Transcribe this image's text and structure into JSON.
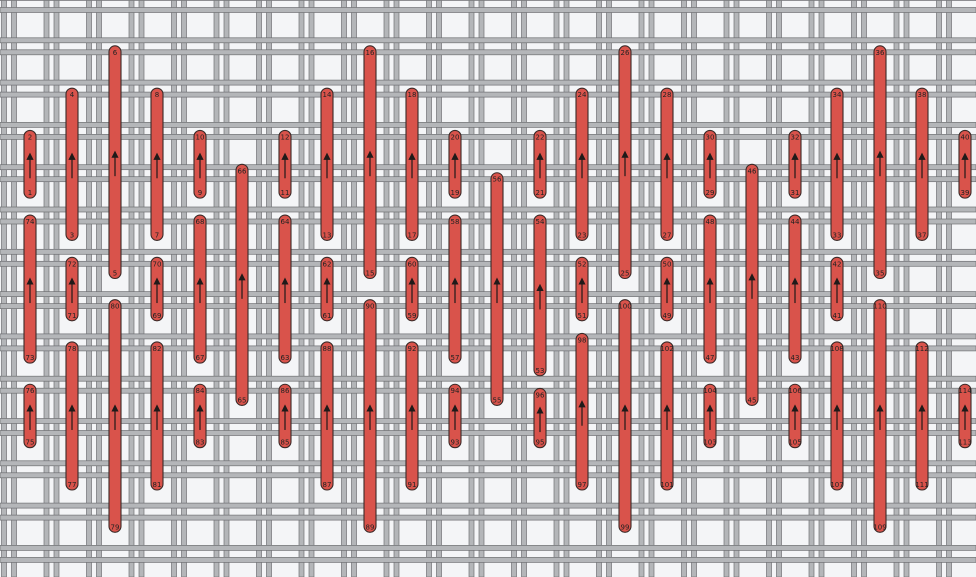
{
  "title": "",
  "colors": {
    "canvas_background": "#f4f5f7",
    "grid_thread": "#b4b6b9",
    "grid_thread_edge": "#6f7174",
    "stitch_fill": "#d9534b",
    "stitch_outline": "#3a2a28",
    "arrow": "#1f1a19"
  },
  "stitches": [
    {
      "id": "c1-a",
      "top": "2",
      "bottom": "1"
    },
    {
      "id": "c1-b",
      "top": "74",
      "bottom": "73"
    },
    {
      "id": "c1-c",
      "top": "76",
      "bottom": "75"
    },
    {
      "id": "c2-a",
      "top": "4",
      "bottom": "3"
    },
    {
      "id": "c2-b",
      "top": "72",
      "bottom": "71"
    },
    {
      "id": "c2-c",
      "top": "78",
      "bottom": "77"
    },
    {
      "id": "c3-a",
      "top": "6",
      "bottom": "5"
    },
    {
      "id": "c3-b",
      "top": "80",
      "bottom": "79"
    },
    {
      "id": "c4-a",
      "top": "8",
      "bottom": "7"
    },
    {
      "id": "c4-b",
      "top": "70",
      "bottom": "69"
    },
    {
      "id": "c4-c",
      "top": "82",
      "bottom": "81"
    },
    {
      "id": "c5-a",
      "top": "10",
      "bottom": "9"
    },
    {
      "id": "c5-b",
      "top": "68",
      "bottom": "67"
    },
    {
      "id": "c5-c",
      "top": "84",
      "bottom": "83"
    },
    {
      "id": "c6-a",
      "top": "66",
      "bottom": "65"
    },
    {
      "id": "c7-a",
      "top": "12",
      "bottom": "11"
    },
    {
      "id": "c7-b",
      "top": "64",
      "bottom": "63"
    },
    {
      "id": "c7-c",
      "top": "86",
      "bottom": "85"
    },
    {
      "id": "c8-a",
      "top": "14",
      "bottom": "13"
    },
    {
      "id": "c8-b",
      "top": "62",
      "bottom": "61"
    },
    {
      "id": "c8-c",
      "top": "88",
      "bottom": "87"
    },
    {
      "id": "c9-a",
      "top": "16",
      "bottom": "15"
    },
    {
      "id": "c9-b",
      "top": "90",
      "bottom": "89"
    },
    {
      "id": "c10-a",
      "top": "18",
      "bottom": "17"
    },
    {
      "id": "c10-b",
      "top": "60",
      "bottom": "59"
    },
    {
      "id": "c10-c",
      "top": "92",
      "bottom": "91"
    },
    {
      "id": "c11-a",
      "top": "20",
      "bottom": "19"
    },
    {
      "id": "c11-b",
      "top": "58",
      "bottom": "57"
    },
    {
      "id": "c11-c",
      "top": "94",
      "bottom": "93"
    },
    {
      "id": "c12-a",
      "top": "56",
      "bottom": "55"
    },
    {
      "id": "c13-a",
      "top": "22",
      "bottom": "21"
    },
    {
      "id": "c13-b",
      "top": "54",
      "bottom": "53"
    },
    {
      "id": "c13-c",
      "top": "96",
      "bottom": "95"
    },
    {
      "id": "c14-a",
      "top": "24",
      "bottom": "23"
    },
    {
      "id": "c14-b",
      "top": "52",
      "bottom": "51"
    },
    {
      "id": "c14-c",
      "top": "98",
      "bottom": "97"
    },
    {
      "id": "c15-a",
      "top": "26",
      "bottom": "25"
    },
    {
      "id": "c15-b",
      "top": "100",
      "bottom": "99"
    },
    {
      "id": "c16-a",
      "top": "28",
      "bottom": "27"
    },
    {
      "id": "c16-b",
      "top": "50",
      "bottom": "49"
    },
    {
      "id": "c16-c",
      "top": "102",
      "bottom": "101"
    },
    {
      "id": "c17-a",
      "top": "30",
      "bottom": "29"
    },
    {
      "id": "c17-b",
      "top": "48",
      "bottom": "47"
    },
    {
      "id": "c17-c",
      "top": "104",
      "bottom": "103"
    },
    {
      "id": "c18-a",
      "top": "46",
      "bottom": "45"
    },
    {
      "id": "c19-a",
      "top": "32",
      "bottom": "31"
    },
    {
      "id": "c19-b",
      "top": "44",
      "bottom": "43"
    },
    {
      "id": "c19-c",
      "top": "106",
      "bottom": "105"
    },
    {
      "id": "c20-a",
      "top": "34",
      "bottom": "33"
    },
    {
      "id": "c20-b",
      "top": "42",
      "bottom": "41"
    },
    {
      "id": "c20-c",
      "top": "108",
      "bottom": "107"
    },
    {
      "id": "c21-a",
      "top": "36",
      "bottom": "35"
    },
    {
      "id": "c21-b",
      "top": "110",
      "bottom": "109"
    },
    {
      "id": "c22-a",
      "top": "38",
      "bottom": "37"
    },
    {
      "id": "c22-b",
      "top": "112",
      "bottom": "111"
    },
    {
      "id": "c23-a",
      "top": "40",
      "bottom": "39"
    },
    {
      "id": "c23-b",
      "top": "114",
      "bottom": "113"
    }
  ]
}
